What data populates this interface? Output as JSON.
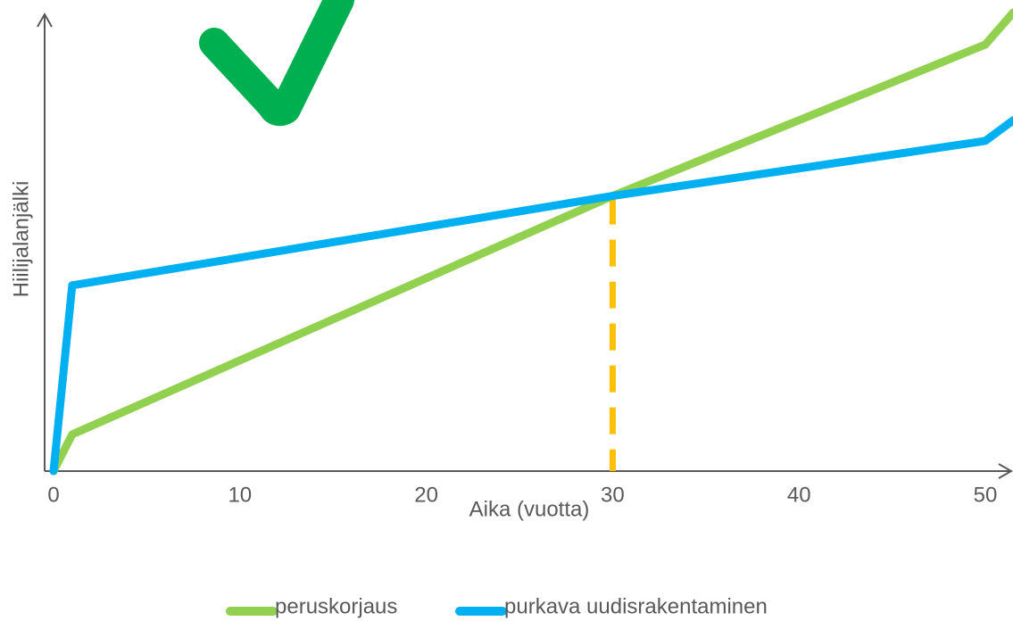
{
  "chart_data": {
    "type": "line",
    "title": "",
    "xlabel": "Aika (vuotta)",
    "ylabel": "Hiilijalanjälki",
    "xlim": [
      0,
      51.5
    ],
    "ylim": [
      0,
      100
    ],
    "xticks": [
      0,
      10,
      20,
      30,
      40,
      50
    ],
    "y_tick_labels": "none",
    "grid": false,
    "legend_position": "bottom",
    "series": [
      {
        "name": "peruskorjaus",
        "color": "#92d050",
        "x": [
          0,
          1,
          30,
          50,
          51.5
        ],
        "y": [
          0,
          8,
          60,
          93,
          100
        ]
      },
      {
        "name": "purkava uudisrakentaminen",
        "color": "#00b0f0",
        "x": [
          0,
          1,
          30,
          50,
          51.5
        ],
        "y": [
          0,
          40.5,
          60,
          72,
          76.5
        ]
      }
    ],
    "annotations": [
      {
        "type": "vertical-dashed-line",
        "x": 30,
        "color": "#ffc000"
      },
      {
        "type": "checkmark-icon",
        "color": "#00b050"
      }
    ]
  }
}
